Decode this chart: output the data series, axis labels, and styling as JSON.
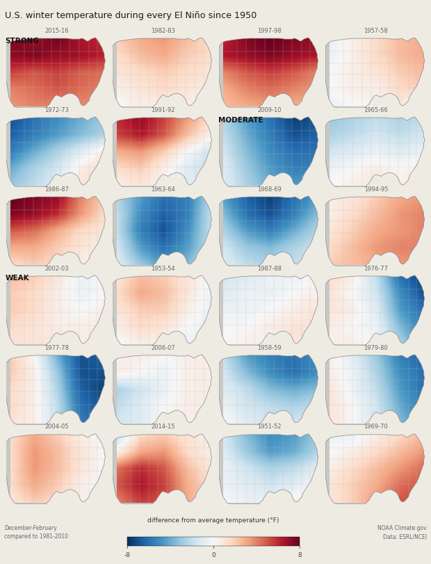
{
  "title": "U.S. winter temperature during every El Niño since 1950",
  "colorbar_label": "difference from average temperature (°F)",
  "vmin": -8,
  "vmax": 8,
  "fig_bg": "#eeebe3",
  "map_bg": "#c8c8c4",
  "ocean_bg": "#c8c8c4",
  "n_rows": 6,
  "n_cols": 4,
  "maps": [
    {
      "year": "2015-16",
      "row": 0,
      "col": 0,
      "label": "STRONG",
      "grid": [
        [
          7.5,
          7.0,
          7.8,
          6.5,
          6.0
        ],
        [
          7.2,
          7.5,
          7.0,
          6.8,
          6.2
        ],
        [
          5.5,
          5.0,
          5.5,
          4.8,
          4.5
        ],
        [
          4.0,
          4.5,
          5.0,
          4.5,
          4.0
        ],
        [
          3.5,
          4.0,
          4.0,
          3.8,
          3.5
        ]
      ]
    },
    {
      "year": "1982-83",
      "row": 0,
      "col": 1,
      "label": null,
      "grid": [
        [
          2.0,
          3.0,
          3.5,
          2.5,
          1.5
        ],
        [
          1.5,
          2.5,
          3.0,
          2.0,
          1.5
        ],
        [
          1.0,
          1.5,
          2.0,
          1.5,
          1.0
        ],
        [
          0.5,
          1.0,
          1.5,
          1.0,
          0.5
        ],
        [
          0.0,
          0.5,
          0.5,
          0.5,
          0.0
        ]
      ]
    },
    {
      "year": "1997-98",
      "row": 0,
      "col": 2,
      "label": null,
      "grid": [
        [
          6.0,
          7.5,
          8.0,
          7.5,
          7.0
        ],
        [
          6.5,
          7.0,
          7.5,
          7.0,
          6.5
        ],
        [
          4.0,
          5.0,
          5.5,
          5.0,
          4.0
        ],
        [
          3.0,
          4.0,
          4.5,
          4.0,
          3.5
        ],
        [
          2.5,
          3.0,
          3.5,
          3.0,
          2.5
        ]
      ]
    },
    {
      "year": "1957-58",
      "row": 0,
      "col": 3,
      "label": null,
      "grid": [
        [
          -0.5,
          0.5,
          1.5,
          2.5,
          3.0
        ],
        [
          -0.5,
          0.5,
          1.5,
          2.5,
          3.0
        ],
        [
          0.0,
          0.5,
          1.0,
          2.0,
          2.5
        ],
        [
          0.0,
          0.5,
          0.5,
          1.5,
          2.0
        ],
        [
          -0.5,
          0.0,
          0.5,
          1.0,
          -1.5
        ]
      ]
    },
    {
      "year": "1972-73",
      "row": 1,
      "col": 0,
      "label": null,
      "grid": [
        [
          -7.0,
          -6.0,
          -5.0,
          -4.0,
          -3.0
        ],
        [
          -6.5,
          -5.5,
          -4.5,
          -3.5,
          -2.5
        ],
        [
          -5.5,
          -4.0,
          -2.5,
          -1.0,
          0.5
        ],
        [
          -4.0,
          -2.5,
          -1.5,
          0.5,
          1.5
        ],
        [
          -3.0,
          -2.0,
          -1.0,
          1.0,
          1.5
        ]
      ]
    },
    {
      "year": "1991-92",
      "row": 1,
      "col": 1,
      "label": null,
      "grid": [
        [
          6.0,
          7.0,
          5.5,
          3.5,
          1.5
        ],
        [
          5.5,
          6.5,
          5.0,
          2.5,
          0.5
        ],
        [
          3.0,
          3.5,
          2.0,
          0.0,
          -1.5
        ],
        [
          1.5,
          2.0,
          0.5,
          -1.0,
          -2.0
        ],
        [
          0.5,
          1.0,
          0.0,
          -1.0,
          -0.5
        ]
      ]
    },
    {
      "year": "2009-10",
      "row": 1,
      "col": 2,
      "label": "MODERATE",
      "grid": [
        [
          -2.5,
          -4.5,
          -6.0,
          -7.5,
          -7.0
        ],
        [
          -2.0,
          -4.0,
          -5.5,
          -7.0,
          -6.5
        ],
        [
          -1.5,
          -3.5,
          -5.0,
          -6.0,
          -6.0
        ],
        [
          -1.0,
          -3.0,
          -4.5,
          -5.5,
          -5.5
        ],
        [
          -1.0,
          -2.5,
          -4.0,
          -4.5,
          -4.0
        ]
      ]
    },
    {
      "year": "1965-66",
      "row": 1,
      "col": 3,
      "label": null,
      "grid": [
        [
          -3.0,
          -2.5,
          -2.0,
          -2.5,
          -2.0
        ],
        [
          -2.5,
          -2.0,
          -1.5,
          -2.0,
          -1.5
        ],
        [
          -1.5,
          -1.0,
          -0.5,
          -1.0,
          -0.5
        ],
        [
          -0.5,
          0.0,
          0.5,
          0.0,
          0.5
        ],
        [
          0.0,
          0.5,
          1.0,
          0.5,
          1.0
        ]
      ]
    },
    {
      "year": "1986-87",
      "row": 2,
      "col": 0,
      "label": null,
      "grid": [
        [
          8.0,
          7.5,
          7.0,
          4.0,
          2.0
        ],
        [
          7.5,
          7.0,
          6.0,
          3.5,
          1.5
        ],
        [
          5.0,
          4.5,
          3.0,
          1.5,
          1.0
        ],
        [
          3.0,
          3.0,
          2.0,
          1.0,
          0.5
        ],
        [
          1.5,
          2.0,
          1.5,
          0.5,
          0.0
        ]
      ]
    },
    {
      "year": "1963-64",
      "row": 2,
      "col": 1,
      "label": null,
      "grid": [
        [
          -2.5,
          -4.5,
          -6.0,
          -5.5,
          -2.5
        ],
        [
          -2.0,
          -5.0,
          -6.5,
          -5.5,
          -2.0
        ],
        [
          -2.0,
          -5.5,
          -7.0,
          -5.0,
          -2.0
        ],
        [
          -1.5,
          -4.5,
          -6.0,
          -4.5,
          -2.0
        ],
        [
          -1.0,
          -3.0,
          -4.5,
          -3.5,
          -1.5
        ]
      ]
    },
    {
      "year": "1968-69",
      "row": 2,
      "col": 2,
      "label": null,
      "grid": [
        [
          -4.5,
          -6.5,
          -7.5,
          -6.0,
          -4.5
        ],
        [
          -3.5,
          -6.0,
          -7.0,
          -5.5,
          -3.5
        ],
        [
          -2.5,
          -4.5,
          -5.5,
          -4.0,
          -2.5
        ],
        [
          -1.5,
          -3.0,
          -3.5,
          -2.5,
          -1.5
        ],
        [
          -1.0,
          -2.0,
          -2.5,
          -2.0,
          -1.0
        ]
      ]
    },
    {
      "year": "1994-95",
      "row": 2,
      "col": 3,
      "label": null,
      "grid": [
        [
          0.5,
          1.0,
          2.0,
          3.0,
          3.5
        ],
        [
          0.5,
          1.5,
          2.5,
          3.5,
          4.0
        ],
        [
          1.0,
          2.0,
          3.0,
          3.5,
          4.0
        ],
        [
          1.5,
          2.5,
          3.5,
          4.0,
          4.0
        ],
        [
          2.0,
          2.5,
          3.0,
          3.5,
          3.5
        ]
      ]
    },
    {
      "year": "2002-03",
      "row": 3,
      "col": 0,
      "label": "WEAK",
      "grid": [
        [
          2.5,
          2.0,
          1.0,
          -0.5,
          0.0
        ],
        [
          2.0,
          1.5,
          0.5,
          -0.5,
          0.0
        ],
        [
          2.0,
          1.5,
          0.5,
          0.0,
          0.5
        ],
        [
          1.5,
          1.0,
          0.5,
          0.5,
          0.5
        ],
        [
          1.0,
          1.0,
          1.0,
          0.5,
          1.0
        ]
      ]
    },
    {
      "year": "1953-54",
      "row": 3,
      "col": 1,
      "label": null,
      "grid": [
        [
          1.0,
          2.5,
          2.0,
          1.0,
          0.0
        ],
        [
          1.5,
          3.0,
          2.5,
          1.0,
          -0.5
        ],
        [
          1.0,
          2.0,
          2.0,
          0.5,
          -0.5
        ],
        [
          0.5,
          1.5,
          1.0,
          0.0,
          -0.5
        ],
        [
          0.0,
          0.5,
          0.5,
          -0.5,
          -0.5
        ]
      ]
    },
    {
      "year": "1987-88",
      "row": 3,
      "col": 2,
      "label": null,
      "grid": [
        [
          -1.5,
          -1.0,
          -0.5,
          -0.5,
          0.0
        ],
        [
          -1.0,
          -0.5,
          -0.5,
          0.0,
          0.5
        ],
        [
          -0.5,
          -0.5,
          0.0,
          0.5,
          1.0
        ],
        [
          0.0,
          0.0,
          0.5,
          1.0,
          1.0
        ],
        [
          0.0,
          0.5,
          0.5,
          1.0,
          1.0
        ]
      ]
    },
    {
      "year": "1976-77",
      "row": 3,
      "col": 3,
      "label": null,
      "grid": [
        [
          1.5,
          0.5,
          -2.0,
          -6.0,
          -7.5
        ],
        [
          1.0,
          0.0,
          -1.5,
          -5.0,
          -7.0
        ],
        [
          1.0,
          0.5,
          -1.0,
          -4.5,
          -6.0
        ],
        [
          0.5,
          0.0,
          -0.5,
          -3.5,
          -5.5
        ],
        [
          0.5,
          0.5,
          0.0,
          -2.5,
          -5.0
        ]
      ]
    },
    {
      "year": "1977-78",
      "row": 4,
      "col": 0,
      "label": null,
      "grid": [
        [
          2.0,
          0.0,
          -4.0,
          -7.0,
          -6.5
        ],
        [
          2.0,
          0.5,
          -3.0,
          -7.0,
          -7.0
        ],
        [
          1.5,
          0.5,
          -2.5,
          -6.5,
          -7.5
        ],
        [
          1.5,
          0.5,
          -2.0,
          -6.0,
          -7.0
        ],
        [
          1.0,
          0.5,
          -2.0,
          -5.5,
          -6.5
        ]
      ]
    },
    {
      "year": "2006-07",
      "row": 4,
      "col": 1,
      "label": null,
      "grid": [
        [
          0.5,
          0.5,
          0.0,
          0.5,
          0.5
        ],
        [
          0.5,
          0.0,
          -0.5,
          0.5,
          0.5
        ],
        [
          -2.5,
          -1.5,
          -0.5,
          0.5,
          0.5
        ],
        [
          -2.0,
          -1.0,
          0.0,
          0.5,
          0.5
        ],
        [
          -1.5,
          -1.0,
          0.0,
          0.5,
          0.5
        ]
      ]
    },
    {
      "year": "1958-59",
      "row": 4,
      "col": 2,
      "label": null,
      "grid": [
        [
          -2.0,
          -4.5,
          -5.5,
          -6.0,
          -5.0
        ],
        [
          -1.5,
          -3.5,
          -5.0,
          -6.0,
          -5.0
        ],
        [
          -1.0,
          -2.0,
          -3.5,
          -4.0,
          -3.5
        ],
        [
          -0.5,
          -1.5,
          -2.0,
          -2.5,
          -2.0
        ],
        [
          0.0,
          -1.0,
          -1.5,
          -1.5,
          -1.0
        ]
      ]
    },
    {
      "year": "1979-80",
      "row": 4,
      "col": 3,
      "label": null,
      "grid": [
        [
          0.5,
          -1.0,
          -3.0,
          -5.5,
          -6.5
        ],
        [
          0.5,
          -0.5,
          -2.5,
          -5.0,
          -6.0
        ],
        [
          1.0,
          -0.5,
          -2.0,
          -4.5,
          -6.0
        ],
        [
          1.0,
          0.0,
          -1.5,
          -4.0,
          -5.5
        ],
        [
          1.0,
          0.0,
          -1.5,
          -3.5,
          -5.0
        ]
      ]
    },
    {
      "year": "2004-05",
      "row": 5,
      "col": 0,
      "label": null,
      "grid": [
        [
          1.5,
          3.0,
          2.0,
          0.5,
          0.0
        ],
        [
          1.5,
          3.5,
          2.5,
          1.0,
          0.0
        ],
        [
          1.5,
          3.5,
          2.5,
          1.0,
          0.0
        ],
        [
          1.5,
          3.0,
          2.0,
          0.5,
          0.0
        ],
        [
          1.0,
          2.0,
          1.5,
          0.5,
          0.5
        ]
      ]
    },
    {
      "year": "2014-15",
      "row": 5,
      "col": 1,
      "label": null,
      "grid": [
        [
          -2.0,
          1.5,
          2.0,
          1.0,
          0.5
        ],
        [
          0.5,
          3.0,
          3.5,
          1.5,
          0.5
        ],
        [
          4.5,
          6.0,
          5.0,
          2.5,
          1.0
        ],
        [
          5.0,
          6.5,
          5.5,
          3.0,
          1.5
        ],
        [
          4.0,
          5.5,
          5.0,
          3.0,
          1.5
        ]
      ]
    },
    {
      "year": "1951-52",
      "row": 5,
      "col": 2,
      "label": null,
      "grid": [
        [
          -1.5,
          -3.5,
          -5.0,
          -4.5,
          -3.0
        ],
        [
          -1.0,
          -3.0,
          -4.5,
          -4.0,
          -2.5
        ],
        [
          -0.5,
          -1.5,
          -2.5,
          -2.0,
          -1.0
        ],
        [
          -0.5,
          -1.0,
          -1.5,
          -1.0,
          0.0
        ],
        [
          0.0,
          -0.5,
          -0.5,
          0.5,
          1.5
        ]
      ]
    },
    {
      "year": "1969-70",
      "row": 5,
      "col": 3,
      "label": null,
      "grid": [
        [
          -0.5,
          -0.5,
          0.5,
          1.5,
          2.5
        ],
        [
          0.0,
          0.5,
          1.5,
          2.5,
          3.5
        ],
        [
          0.5,
          1.5,
          2.5,
          3.5,
          4.5
        ],
        [
          1.0,
          2.0,
          3.0,
          4.5,
          5.0
        ],
        [
          1.0,
          2.0,
          3.5,
          5.0,
          5.5
        ]
      ]
    }
  ]
}
